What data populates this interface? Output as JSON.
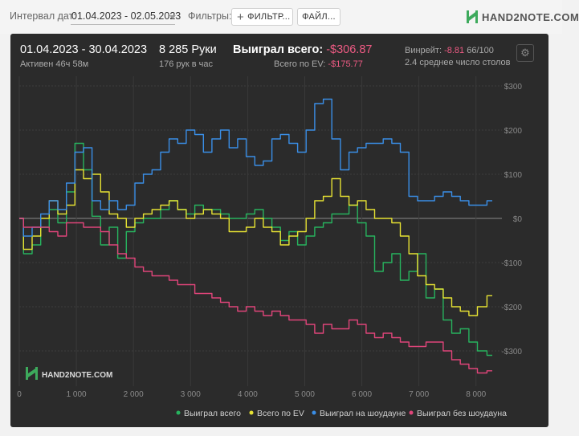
{
  "toolbar": {
    "interval_label": "Интервал дат:",
    "interval_value": "01.04.2023 - 02.05.2023",
    "filters_label": "Фильтры:",
    "filter_button": "ФИЛЬТР...",
    "file_button": "ФАЙЛ...",
    "logo": "HAND2NOTE.COM"
  },
  "summary": {
    "date_range": "01.04.2023 - 30.04.2023",
    "active": "Активен 46ч 58м",
    "hands": "8 285 Руки",
    "hands_per_hour": "176 рук в час",
    "won_total_label": "Выиграл всего:",
    "won_total_value": "-$306.87",
    "ev_label": "Всего по EV:",
    "ev_value": "-$175.77",
    "winrate_label": "Винрейт:",
    "winrate_value": "-8.81",
    "winrate_unit": "66/100",
    "avg_tables": "2.4 среднее число столов"
  },
  "watermark": "HAND2NOTE.COM",
  "colors": {
    "won_total": "#27b35e",
    "ev": "#e6e233",
    "showdown": "#3a8ee6",
    "no_showdown": "#e0457a",
    "negative": "#ef5b84"
  },
  "chart_data": {
    "type": "line",
    "xlim": [
      0,
      8285
    ],
    "ylim": [
      -350,
      300
    ],
    "x_ticks": [
      0,
      1000,
      2000,
      3000,
      4000,
      5000,
      6000,
      7000,
      8000
    ],
    "x_tick_labels": [
      "0",
      "1 000",
      "2 000",
      "3 000",
      "4 000",
      "5 000",
      "6 000",
      "7 000",
      "8 000"
    ],
    "y_ticks": [
      300,
      200,
      100,
      0,
      -100,
      -200,
      -300
    ],
    "y_tick_labels": [
      "$300",
      "$200",
      "$100",
      "$0",
      "-$100",
      "-$200",
      "-$300"
    ],
    "legend_position": "bottom-right",
    "series": [
      {
        "name": "Выиграл всего",
        "color_key": "won_total",
        "x": [
          0,
          150,
          300,
          450,
          600,
          750,
          900,
          1050,
          1200,
          1350,
          1500,
          1650,
          1800,
          1950,
          2100,
          2250,
          2400,
          2550,
          2700,
          2850,
          3000,
          3150,
          3300,
          3450,
          3600,
          3750,
          3900,
          4050,
          4200,
          4350,
          4500,
          4650,
          4800,
          4950,
          5100,
          5250,
          5400,
          5550,
          5700,
          5850,
          6000,
          6150,
          6300,
          6450,
          6600,
          6750,
          6900,
          7050,
          7200,
          7350,
          7500,
          7650,
          7800,
          7950,
          8100,
          8285
        ],
        "y": [
          0,
          -80,
          -60,
          -20,
          20,
          -10,
          60,
          170,
          110,
          5,
          -60,
          -20,
          -90,
          -30,
          -10,
          0,
          0,
          20,
          40,
          20,
          10,
          30,
          20,
          20,
          10,
          0,
          0,
          10,
          20,
          0,
          -20,
          -50,
          -30,
          -60,
          -40,
          -20,
          -10,
          10,
          10,
          30,
          -10,
          -40,
          -120,
          -100,
          -80,
          -140,
          -120,
          -80,
          -180,
          -160,
          -230,
          -260,
          -250,
          -280,
          -300,
          -310
        ]
      },
      {
        "name": "Всего по EV",
        "color_key": "ev",
        "x": [
          0,
          150,
          300,
          450,
          600,
          750,
          900,
          1050,
          1200,
          1350,
          1500,
          1650,
          1800,
          1950,
          2100,
          2250,
          2400,
          2550,
          2700,
          2850,
          3000,
          3150,
          3300,
          3450,
          3600,
          3750,
          3900,
          4050,
          4200,
          4350,
          4500,
          4650,
          4800,
          4950,
          5100,
          5250,
          5400,
          5550,
          5700,
          5850,
          6000,
          6150,
          6300,
          6450,
          6600,
          6750,
          6900,
          7050,
          7200,
          7350,
          7500,
          7650,
          7800,
          7950,
          8100,
          8285
        ],
        "y": [
          0,
          -70,
          -40,
          0,
          40,
          10,
          30,
          110,
          90,
          100,
          60,
          10,
          0,
          -20,
          0,
          10,
          20,
          30,
          40,
          20,
          0,
          10,
          20,
          10,
          0,
          -30,
          -30,
          -20,
          0,
          -20,
          -30,
          -60,
          -40,
          -30,
          0,
          40,
          50,
          90,
          50,
          30,
          40,
          20,
          0,
          0,
          -10,
          -40,
          -80,
          -130,
          -150,
          -160,
          -180,
          -200,
          -210,
          -220,
          -200,
          -175
        ]
      },
      {
        "name": "Выиграл на шоудауне",
        "color_key": "showdown",
        "x": [
          0,
          150,
          300,
          450,
          600,
          750,
          900,
          1050,
          1200,
          1350,
          1500,
          1650,
          1800,
          1950,
          2100,
          2250,
          2400,
          2550,
          2700,
          2850,
          3000,
          3150,
          3300,
          3450,
          3600,
          3750,
          3900,
          4050,
          4200,
          4350,
          4500,
          4650,
          4800,
          4950,
          5100,
          5250,
          5400,
          5550,
          5700,
          5850,
          6000,
          6150,
          6300,
          6450,
          6600,
          6750,
          6900,
          7050,
          7200,
          7350,
          7500,
          7650,
          7800,
          7950,
          8100,
          8285
        ],
        "y": [
          0,
          -40,
          -20,
          10,
          40,
          20,
          80,
          150,
          160,
          40,
          20,
          40,
          20,
          30,
          80,
          100,
          110,
          150,
          180,
          170,
          200,
          190,
          150,
          180,
          200,
          160,
          180,
          140,
          120,
          130,
          180,
          190,
          170,
          150,
          200,
          260,
          270,
          180,
          110,
          150,
          160,
          170,
          170,
          180,
          170,
          150,
          50,
          40,
          40,
          50,
          60,
          50,
          40,
          30,
          30,
          40
        ]
      },
      {
        "name": "Выиграл без шоудауна",
        "color_key": "no_showdown",
        "x": [
          0,
          150,
          300,
          450,
          600,
          750,
          900,
          1050,
          1200,
          1350,
          1500,
          1650,
          1800,
          1950,
          2100,
          2250,
          2400,
          2550,
          2700,
          2850,
          3000,
          3150,
          3300,
          3450,
          3600,
          3750,
          3900,
          4050,
          4200,
          4350,
          4500,
          4650,
          4800,
          4950,
          5100,
          5250,
          5400,
          5550,
          5700,
          5850,
          6000,
          6150,
          6300,
          6450,
          6600,
          6750,
          6900,
          7050,
          7200,
          7350,
          7500,
          7650,
          7800,
          7950,
          8100,
          8285
        ],
        "y": [
          0,
          -20,
          -20,
          -20,
          -30,
          -40,
          -10,
          -10,
          -20,
          -20,
          -30,
          -60,
          -80,
          -90,
          -110,
          -120,
          -130,
          -130,
          -140,
          -150,
          -150,
          -170,
          -170,
          -180,
          -190,
          -200,
          -210,
          -200,
          -210,
          -220,
          -210,
          -220,
          -230,
          -230,
          -240,
          -260,
          -240,
          -250,
          -250,
          -230,
          -240,
          -260,
          -270,
          -260,
          -270,
          -280,
          -290,
          -290,
          -280,
          -280,
          -300,
          -320,
          -330,
          -340,
          -350,
          -345
        ]
      }
    ]
  }
}
